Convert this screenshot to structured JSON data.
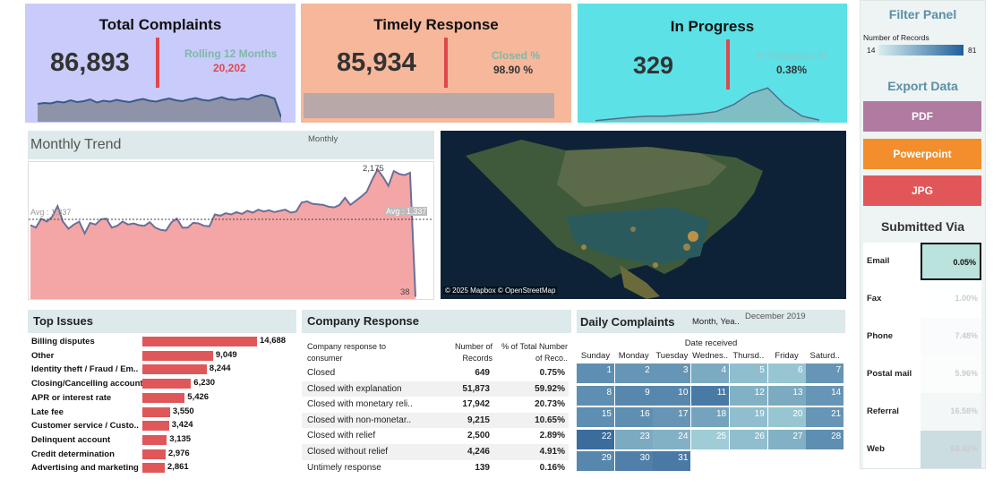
{
  "kpis": {
    "total": {
      "title": "Total Complaints",
      "value": "86,893",
      "sub_label": "Rolling 12 Months",
      "sub_value": "20,202",
      "spark": [
        40,
        42,
        41,
        45,
        43,
        48,
        44,
        46,
        50,
        43,
        47,
        45,
        49,
        46,
        44,
        48,
        51,
        47,
        45,
        49,
        52,
        48,
        46,
        50,
        53,
        49,
        47,
        51,
        55,
        50,
        49,
        52,
        50,
        56,
        60,
        57,
        52,
        10
      ]
    },
    "timely": {
      "title": "Timely Response",
      "value": "85,934",
      "sub_label": "Closed %",
      "sub_value": "98.90 %"
    },
    "progress": {
      "title": "In Progress",
      "value": "329",
      "sub_label": "In Progress %",
      "sub_value": "0.38%",
      "spark": [
        2,
        5,
        8,
        10,
        10,
        12,
        14,
        18,
        30,
        50,
        60,
        30,
        10,
        3
      ]
    }
  },
  "monthly": {
    "title": "Monthly Trend",
    "toggle": "Monthly",
    "avg_label_left": "Avg : 1,337",
    "avg_label_right": "Avg : 1,337",
    "max_label": "2,175",
    "min_label": "38"
  },
  "map": {
    "credit": "© 2025 Mapbox © OpenStreetMap"
  },
  "chart_data": [
    {
      "type": "area",
      "title": "Monthly Trend",
      "avg": 1337,
      "ylim": [
        0,
        2300
      ],
      "values": [
        1240,
        1200,
        1350,
        1300,
        1380,
        1560,
        1300,
        1180,
        1250,
        1300,
        1100,
        1280,
        1250,
        1340,
        1350,
        1200,
        1230,
        1300,
        1250,
        1270,
        1240,
        1230,
        1290,
        1200,
        1160,
        1150,
        1290,
        1350,
        1200,
        1200,
        1280,
        1270,
        1230,
        1220,
        1420,
        1400,
        1440,
        1420,
        1460,
        1430,
        1480,
        1450,
        1500,
        1470,
        1490,
        1460,
        1480,
        1500,
        1450,
        1470,
        1620,
        1640,
        1600,
        1590,
        1580,
        1550,
        1540,
        1580,
        1700,
        1580,
        1650,
        1720,
        1800,
        2000,
        2175,
        2050,
        1900,
        2150,
        2100,
        2080,
        2120,
        38
      ]
    },
    {
      "type": "bar",
      "title": "Top Issues",
      "categories": [
        "Billing disputes",
        "Other",
        "Identity theft / Fraud / Em..",
        "Closing/Cancelling account",
        "APR or interest rate",
        "Late fee",
        "Customer service / Custo..",
        "Delinquent account",
        "Credit determination",
        "Advertising and marketing"
      ],
      "values": [
        14688,
        9049,
        8244,
        6230,
        5426,
        3550,
        3424,
        3135,
        2976,
        2861
      ],
      "labels": [
        "14,688",
        "9,049",
        "8,244",
        "6,230",
        "5,426",
        "3,550",
        "3,424",
        "3,135",
        "2,976",
        "2,861"
      ]
    },
    {
      "type": "table",
      "title": "Company Response",
      "headers": [
        "Company response to consumer",
        "Number of Records",
        "% of Total Number of Reco.."
      ],
      "rows": [
        [
          "Closed",
          "649",
          "0.75%"
        ],
        [
          "Closed with explanation",
          "51,873",
          "59.92%"
        ],
        [
          "Closed with monetary reli..",
          "17,942",
          "20.73%"
        ],
        [
          "Closed with non-monetar..",
          "9,215",
          "10.65%"
        ],
        [
          "Closed with relief",
          "2,500",
          "2.89%"
        ],
        [
          "Closed without relief",
          "4,246",
          "4.91%"
        ],
        [
          "Untimely response",
          "139",
          "0.16%"
        ]
      ]
    },
    {
      "type": "heatmap",
      "title": "Daily Complaints",
      "filter": "Month, Yea..",
      "period": "December 2019",
      "axis_title": "Date received",
      "days": [
        "Sunday",
        "Monday",
        "Tuesday",
        "Wednes..",
        "Thursd..",
        "Friday",
        "Saturd.."
      ],
      "weeks": [
        [
          "1",
          "2",
          "3",
          "4",
          "5",
          "6",
          "7"
        ],
        [
          "8",
          "9",
          "10",
          "11",
          "12",
          "13",
          "14"
        ],
        [
          "15",
          "16",
          "17",
          "18",
          "19",
          "20",
          "21"
        ],
        [
          "22",
          "23",
          "24",
          "25",
          "26",
          "27",
          "28"
        ],
        [
          "29",
          "30",
          "31",
          "",
          "",
          "",
          ""
        ]
      ],
      "intensity": [
        [
          0.55,
          0.5,
          0.5,
          0.35,
          0.2,
          0.15,
          0.5
        ],
        [
          0.55,
          0.6,
          0.6,
          0.7,
          0.3,
          0.35,
          0.5
        ],
        [
          0.55,
          0.55,
          0.5,
          0.4,
          0.2,
          0.15,
          0.5
        ],
        [
          0.8,
          0.35,
          0.3,
          0.1,
          0.2,
          0.3,
          0.55
        ],
        [
          0.6,
          0.65,
          0.7,
          null,
          null,
          null,
          null
        ]
      ]
    }
  ],
  "filter": {
    "title": "Filter Panel",
    "legend_label": "Number of Records",
    "min": "14",
    "max": "81"
  },
  "export": {
    "title": "Export Data",
    "pdf": "PDF",
    "ppt": "Powerpoint",
    "jpg": "JPG"
  },
  "submitted": {
    "title": "Submitted Via",
    "rows": [
      {
        "label": "Email",
        "value": "0.05%"
      },
      {
        "label": "Fax",
        "value": "1.00%"
      },
      {
        "label": "Phone",
        "value": "7.48%"
      },
      {
        "label": "Postal mail",
        "value": "5.96%"
      },
      {
        "label": "Referral",
        "value": "16.58%"
      },
      {
        "label": "Web",
        "value": "68.92%"
      }
    ]
  },
  "colors": {
    "kpi1": "#c9cbfb",
    "kpi2": "#f6b79b",
    "kpi3": "#5ce1e6",
    "bar": "#e0575a",
    "pdf": "#b07aa1",
    "ppt": "#f28e2b",
    "jpg": "#e15759"
  }
}
